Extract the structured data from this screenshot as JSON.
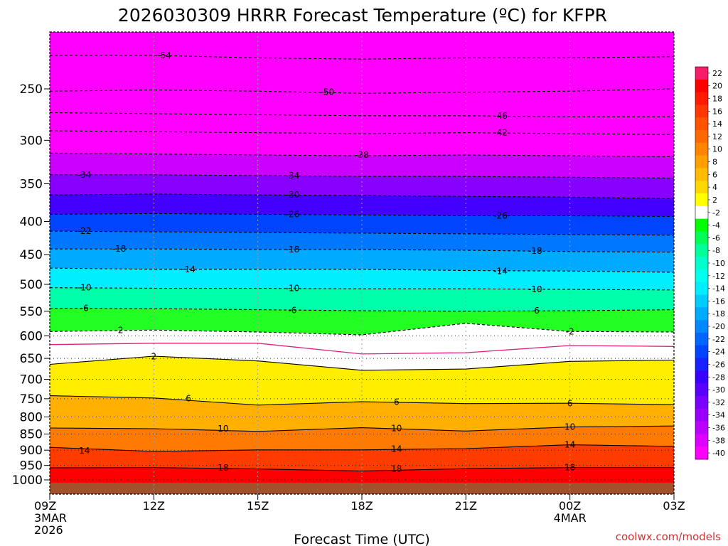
{
  "chart_data": {
    "type": "heatmap",
    "title": "2026030309 HRRR Forecast Temperature (ºC) for KFPR",
    "xlabel": "Forecast Time (UTC)",
    "ylabel": "",
    "credit": "coolwx.com/models",
    "x_hours": [
      0,
      3,
      6,
      9,
      12,
      15,
      18
    ],
    "x_ticks": [
      {
        "hour": 0,
        "lines": [
          "09Z",
          "3MAR",
          "2026"
        ]
      },
      {
        "hour": 3,
        "lines": [
          "12Z"
        ]
      },
      {
        "hour": 6,
        "lines": [
          "15Z"
        ]
      },
      {
        "hour": 9,
        "lines": [
          "18Z"
        ]
      },
      {
        "hour": 12,
        "lines": [
          "21Z"
        ]
      },
      {
        "hour": 15,
        "lines": [
          "00Z",
          "4MAR"
        ]
      },
      {
        "hour": 18,
        "lines": [
          "03Z"
        ]
      }
    ],
    "y_ticks": [
      "250",
      "300",
      "350",
      "400",
      "450",
      "500",
      "550",
      "600",
      "650",
      "700",
      "750",
      "800",
      "850",
      "900",
      "950",
      "1000"
    ],
    "y_tick_values": [
      250,
      300,
      350,
      400,
      450,
      500,
      550,
      600,
      650,
      700,
      750,
      800,
      850,
      900,
      950,
      1000
    ],
    "ylim": [
      200,
      1030
    ],
    "xlim": [
      0,
      18
    ],
    "dotted_levels": [
      600,
      650,
      700,
      750,
      800,
      850,
      900,
      950,
      1000
    ],
    "colorbar_labels": [
      "22",
      "20",
      "18",
      "16",
      "14",
      "12",
      "10",
      "8",
      "6",
      "4",
      "2",
      "-2",
      "-4",
      "-6",
      "-8",
      "-10",
      "-12",
      "-14",
      "-16",
      "-18",
      "-20",
      "-22",
      "-24",
      "-26",
      "-28",
      "-30",
      "-32",
      "-34",
      "-36",
      "-38",
      "-40"
    ],
    "colorbar_colors": [
      "#f71d6a",
      "#ff0000",
      "#ff1a00",
      "#ff3700",
      "#ff5300",
      "#ff6a00",
      "#ff8500",
      "#ff9f00",
      "#ffbb00",
      "#ffd800",
      "#ffff00",
      "#ffffff",
      "#00ff00",
      "#00ff55",
      "#00ff99",
      "#00ffcc",
      "#00ffee",
      "#00eeff",
      "#00ccff",
      "#00aaff",
      "#0088ff",
      "#0066ff",
      "#0044ff",
      "#1a22ff",
      "#3a00ff",
      "#5a00ff",
      "#7a00ff",
      "#9900ff",
      "#bb00ff",
      "#dd00ff",
      "#ff00ff"
    ],
    "series": [
      {
        "name": "-54",
        "values": [
          222,
          222,
          224,
          225,
          224,
          224,
          223
        ]
      },
      {
        "name": "-50",
        "values": [
          252,
          251,
          252,
          254,
          253,
          252,
          250
        ]
      },
      {
        "name": "-46",
        "values": [
          272,
          273,
          274,
          275,
          275,
          276,
          276
        ]
      },
      {
        "name": "-42",
        "values": [
          290,
          291,
          292,
          293,
          292,
          293,
          294
        ]
      },
      {
        "name": "-38",
        "values": [
          314,
          315,
          316,
          317,
          316,
          317,
          318
        ]
      },
      {
        "name": "-34",
        "values": [
          339,
          339,
          340,
          341,
          341,
          342,
          343
        ]
      },
      {
        "name": "-30",
        "values": [
          364,
          363,
          364,
          365,
          366,
          367,
          369
        ]
      },
      {
        "name": "-26",
        "values": [
          390,
          389,
          390,
          391,
          392,
          392,
          393
        ]
      },
      {
        "name": "-22",
        "values": [
          414,
          415,
          416,
          417,
          418,
          419,
          420
        ]
      },
      {
        "name": "-18",
        "values": [
          441,
          441,
          442,
          442,
          443,
          445,
          446
        ]
      },
      {
        "name": "-14",
        "values": [
          472,
          474,
          474,
          474,
          476,
          477,
          479
        ]
      },
      {
        "name": "-10",
        "values": [
          506,
          507,
          507,
          508,
          508,
          509,
          510
        ]
      },
      {
        "name": "-6",
        "values": [
          544,
          545,
          547,
          549,
          550,
          549,
          547
        ]
      },
      {
        "name": "-2",
        "values": [
          591,
          588,
          592,
          598,
          574,
          591,
          592
        ]
      },
      {
        "name": "0",
        "values": [
          619,
          616,
          616,
          640,
          637,
          621,
          623
        ]
      },
      {
        "name": "2",
        "values": [
          664,
          645,
          656,
          678,
          675,
          657,
          654
        ]
      },
      {
        "name": "6",
        "values": [
          742,
          748,
          767,
          758,
          763,
          762,
          766
        ]
      },
      {
        "name": "10",
        "values": [
          832,
          834,
          842,
          831,
          841,
          829,
          826
        ]
      },
      {
        "name": "14",
        "values": [
          891,
          904,
          899,
          899,
          895,
          883,
          888
        ]
      },
      {
        "name": "18",
        "values": [
          958,
          957,
          962,
          969,
          961,
          957,
          957
        ]
      }
    ],
    "label_positions": [
      {
        "text": "-54",
        "hour": 3.3,
        "level": 222
      },
      {
        "text": "-50",
        "hour": 8.0,
        "level": 253
      },
      {
        "text": "-46",
        "hour": 13.0,
        "level": 275
      },
      {
        "text": "-42",
        "hour": 13.0,
        "level": 292
      },
      {
        "text": "-38",
        "hour": 9.0,
        "level": 316
      },
      {
        "text": "-34",
        "hour": 1.0,
        "level": 339
      },
      {
        "text": "-34",
        "hour": 7.0,
        "level": 340
      },
      {
        "text": "-30",
        "hour": 7.0,
        "level": 364
      },
      {
        "text": "-26",
        "hour": 7.0,
        "level": 390
      },
      {
        "text": "-26",
        "hour": 13.0,
        "level": 392
      },
      {
        "text": "-22",
        "hour": 1.0,
        "level": 414
      },
      {
        "text": "-18",
        "hour": 2.0,
        "level": 441
      },
      {
        "text": "-18",
        "hour": 7.0,
        "level": 442
      },
      {
        "text": "-18",
        "hour": 14.0,
        "level": 444
      },
      {
        "text": "-14",
        "hour": 4.0,
        "level": 474
      },
      {
        "text": "-14",
        "hour": 13.0,
        "level": 477
      },
      {
        "text": "-10",
        "hour": 1.0,
        "level": 506
      },
      {
        "text": "-10",
        "hour": 7.0,
        "level": 507
      },
      {
        "text": "-10",
        "hour": 14.0,
        "level": 509
      },
      {
        "text": "-6",
        "hour": 1.0,
        "level": 544
      },
      {
        "text": "-6",
        "hour": 7.0,
        "level": 548
      },
      {
        "text": "-6",
        "hour": 14.0,
        "level": 549
      },
      {
        "text": "-2",
        "hour": 2.0,
        "level": 588
      },
      {
        "text": "-2",
        "hour": 15.0,
        "level": 591
      },
      {
        "text": "2",
        "hour": 3.0,
        "level": 646
      },
      {
        "text": "6",
        "hour": 4.0,
        "level": 749
      },
      {
        "text": "6",
        "hour": 10.0,
        "level": 759
      },
      {
        "text": "6",
        "hour": 15.0,
        "level": 763
      },
      {
        "text": "10",
        "hour": 5.0,
        "level": 834
      },
      {
        "text": "10",
        "hour": 10.0,
        "level": 833
      },
      {
        "text": "10",
        "hour": 15.0,
        "level": 829
      },
      {
        "text": "14",
        "hour": 1.0,
        "level": 902
      },
      {
        "text": "14",
        "hour": 10.0,
        "level": 896
      },
      {
        "text": "14",
        "hour": 15.0,
        "level": 883
      },
      {
        "text": "18",
        "hour": 5.0,
        "level": 958
      },
      {
        "text": "18",
        "hour": 10.0,
        "level": 962
      },
      {
        "text": "18",
        "hour": 15.0,
        "level": 957
      }
    ],
    "bands": [
      {
        "from": "top",
        "to": "-38",
        "color": "#ff00ff"
      },
      {
        "from": "-38",
        "to": "-34",
        "color": "#cc00ff"
      },
      {
        "from": "-34",
        "to": "-30",
        "color": "#8800ff"
      },
      {
        "from": "-30",
        "to": "-26",
        "color": "#4400ff"
      },
      {
        "from": "-26",
        "to": "-22",
        "color": "#0044ff"
      },
      {
        "from": "-22",
        "to": "-18",
        "color": "#0077ff"
      },
      {
        "from": "-18",
        "to": "-14",
        "color": "#00aaff"
      },
      {
        "from": "-14",
        "to": "-10",
        "color": "#00eeff"
      },
      {
        "from": "-10",
        "to": "-6",
        "color": "#00ffaa"
      },
      {
        "from": "-6",
        "to": "-2",
        "color": "#22ff22"
      },
      {
        "from": "-2",
        "to": "2",
        "color": "#ffffff"
      },
      {
        "from": "2",
        "to": "6",
        "color": "#ffee00"
      },
      {
        "from": "6",
        "to": "10",
        "color": "#ffb000"
      },
      {
        "from": "10",
        "to": "14",
        "color": "#ff7a00"
      },
      {
        "from": "14",
        "to": "18",
        "color": "#ff3c00"
      },
      {
        "from": "18",
        "to": "bottom",
        "color": "#ff0000"
      }
    ],
    "ground_color": "#a0522d"
  }
}
